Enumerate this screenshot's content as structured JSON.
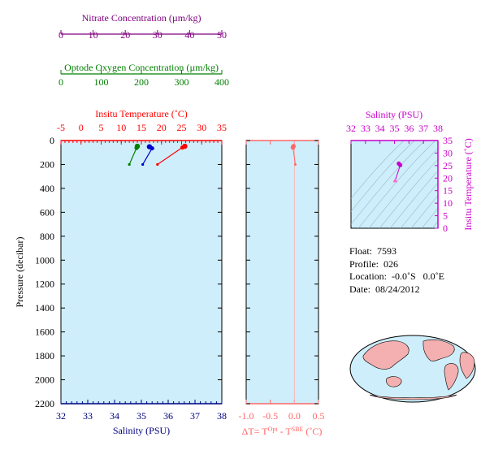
{
  "chart_data": [
    {
      "type": "line",
      "name": "profile-plot",
      "ylabel": "Pressure (decibar)",
      "ylim": [
        2200,
        0
      ],
      "yticks": [
        0,
        200,
        400,
        600,
        800,
        1000,
        1200,
        1400,
        1600,
        1800,
        2000,
        2200
      ],
      "axes": [
        {
          "key": "nitrate",
          "label": "Nitrate Concentration (µm/kg)",
          "range": [
            0,
            50
          ],
          "ticks": [
            0,
            10,
            20,
            30,
            40,
            50
          ],
          "color": "#800080"
        },
        {
          "key": "oxygen",
          "label": "Optode Oxygen Concentration (µm/kg)",
          "range": [
            0,
            400
          ],
          "ticks": [
            0,
            100,
            200,
            300,
            400
          ],
          "color": "#008000"
        },
        {
          "key": "temperature",
          "label": "Insitu Temperature (˚C)",
          "range": [
            -5,
            35
          ],
          "ticks": [
            -5,
            0,
            5,
            10,
            15,
            20,
            25,
            30,
            35
          ],
          "color": "#ff0000"
        },
        {
          "key": "salinity",
          "label": "Salinity (PSU)",
          "range": [
            32,
            38
          ],
          "ticks": [
            32,
            33,
            34,
            35,
            36,
            37,
            38
          ],
          "color": "#000080"
        }
      ],
      "series": [
        {
          "axis": "temperature",
          "color": "#ff0000",
          "points": [
            [
              25.8,
              48
            ],
            [
              25.2,
              58
            ],
            [
              19.0,
              200
            ]
          ]
        },
        {
          "axis": "oxygen",
          "color": "#008000",
          "points": [
            [
              190,
              48
            ],
            [
              188,
              62
            ],
            [
              170,
              200
            ]
          ]
        },
        {
          "axis": "salinity",
          "color": "#0000cc",
          "points": [
            [
              35.3,
              52
            ],
            [
              35.4,
              65
            ],
            [
              35.05,
              200
            ]
          ]
        }
      ]
    },
    {
      "type": "line",
      "name": "delta-t-plot",
      "xlabel": "ΔT= T",
      "xlabel_sup1": "Opt",
      "xlabel_mid": " - T",
      "xlabel_sup2": "SBE",
      "xlabel_end": " (˚C)",
      "xlim": [
        -1.0,
        0.5
      ],
      "xticks": [
        -1.0,
        -0.5,
        0.0,
        0.5
      ],
      "ylim": [
        2200,
        0
      ],
      "color": "#ff6666",
      "points": [
        [
          -0.02,
          48
        ],
        [
          -0.03,
          58
        ],
        [
          0.02,
          200
        ]
      ]
    },
    {
      "type": "scatter",
      "name": "ts-diagram",
      "xlabel": "Salinity (PSU)",
      "ylabel": "Insitu Temperature (˚C)",
      "xlim": [
        32,
        38
      ],
      "ylim": [
        0,
        35
      ],
      "xticks": [
        32,
        33,
        34,
        35,
        36,
        37,
        38
      ],
      "yticks": [
        0,
        5,
        10,
        15,
        20,
        25,
        30,
        35
      ],
      "color": "#cc00cc",
      "points": [
        [
          35.3,
          25.8
        ],
        [
          35.4,
          25.2
        ],
        [
          35.05,
          19.0
        ]
      ]
    }
  ],
  "info": {
    "float": "Float:  7593",
    "profile": "Profile:  026",
    "location": "Location:  -0.0˚S   0.0˚E",
    "date": "Date:  08/24/2012"
  },
  "colors": {
    "plot_bg": "#cdeefa",
    "map_ocean": "#cdeefa",
    "map_land": "#f4b0b0"
  }
}
